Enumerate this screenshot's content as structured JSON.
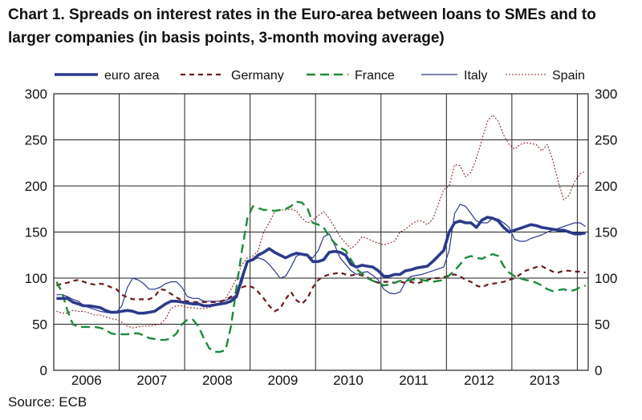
{
  "title": "Chart 1. Spreads on interest rates in the Euro-area between loans to SMEs and to larger companies (in basis points, 3-month moving average)",
  "source": "Source: ECB",
  "chart_data": {
    "type": "line",
    "title": "Chart 1. Spreads on interest rates in the Euro-area between loans to SMEs and to larger companies (in basis points, 3-month moving average)",
    "xlabel": "",
    "ylabel": "",
    "ylim": [
      0,
      300
    ],
    "y_ticks": [
      "0",
      "50",
      "100",
      "150",
      "200",
      "250",
      "300"
    ],
    "year_labels": [
      "2006",
      "2007",
      "2008",
      "2009",
      "2010",
      "2011",
      "2012",
      "2013"
    ],
    "grid": true,
    "legend_position": "top",
    "x": [
      "2006-01",
      "2006-02",
      "2006-03",
      "2006-04",
      "2006-05",
      "2006-06",
      "2006-07",
      "2006-08",
      "2006-09",
      "2006-10",
      "2006-11",
      "2006-12",
      "2007-01",
      "2007-02",
      "2007-03",
      "2007-04",
      "2007-05",
      "2007-06",
      "2007-07",
      "2007-08",
      "2007-09",
      "2007-10",
      "2007-11",
      "2007-12",
      "2008-01",
      "2008-02",
      "2008-03",
      "2008-04",
      "2008-05",
      "2008-06",
      "2008-07",
      "2008-08",
      "2008-09",
      "2008-10",
      "2008-11",
      "2008-12",
      "2009-01",
      "2009-02",
      "2009-03",
      "2009-04",
      "2009-05",
      "2009-06",
      "2009-07",
      "2009-08",
      "2009-09",
      "2009-10",
      "2009-11",
      "2009-12",
      "2010-01",
      "2010-02",
      "2010-03",
      "2010-04",
      "2010-05",
      "2010-06",
      "2010-07",
      "2010-08",
      "2010-09",
      "2010-10",
      "2010-11",
      "2010-12",
      "2011-01",
      "2011-02",
      "2011-03",
      "2011-04",
      "2011-05",
      "2011-06",
      "2011-07",
      "2011-08",
      "2011-09",
      "2011-10",
      "2011-11",
      "2011-12",
      "2012-01",
      "2012-02",
      "2012-03",
      "2012-04",
      "2012-05",
      "2012-06",
      "2012-07",
      "2012-08",
      "2012-09",
      "2012-10",
      "2012-11",
      "2012-12",
      "2013-01",
      "2013-02",
      "2013-03",
      "2013-04",
      "2013-05",
      "2013-06",
      "2013-07",
      "2013-08",
      "2013-09",
      "2013-10",
      "2013-11",
      "2013-12",
      "2014-01",
      "2014-02"
    ],
    "series": [
      {
        "name": "euro area",
        "color": "#2b3a8c",
        "style": "thick",
        "values": [
          78,
          78,
          78,
          74,
          72,
          70,
          70,
          69,
          68,
          65,
          63,
          63,
          64,
          65,
          64,
          62,
          62,
          63,
          64,
          68,
          72,
          75,
          75,
          74,
          73,
          72,
          72,
          70,
          70,
          71,
          72,
          73,
          75,
          80,
          100,
          118,
          120,
          125,
          128,
          132,
          128,
          125,
          122,
          125,
          127,
          126,
          125,
          118,
          118,
          120,
          128,
          129,
          128,
          125,
          115,
          112,
          114,
          113,
          112,
          108,
          102,
          102,
          104,
          104,
          108,
          109,
          111,
          112,
          113,
          118,
          124,
          130,
          150,
          160,
          162,
          160,
          160,
          155,
          163,
          166,
          165,
          162,
          155,
          150,
          152,
          154,
          156,
          158,
          157,
          155,
          154,
          153,
          152,
          152,
          150,
          148,
          148,
          149
        ]
      },
      {
        "name": "Germany",
        "color": "#6b1a1a",
        "style": "dashed",
        "values": [
          92,
          94,
          95,
          97,
          98,
          96,
          94,
          93,
          94,
          93,
          90,
          88,
          82,
          79,
          77,
          77,
          77,
          77,
          80,
          88,
          87,
          83,
          79,
          76,
          75,
          74,
          74,
          74,
          74,
          74,
          75,
          76,
          80,
          85,
          90,
          92,
          90,
          85,
          78,
          70,
          64,
          67,
          77,
          85,
          76,
          72,
          78,
          90,
          98,
          102,
          104,
          105,
          106,
          104,
          103,
          104,
          103,
          101,
          97,
          95,
          96,
          96,
          95,
          96,
          95,
          96,
          94,
          96,
          98,
          100,
          100,
          101,
          103,
          104,
          102,
          98,
          96,
          92,
          90,
          93,
          94,
          95,
          96,
          98,
          100,
          104,
          108,
          110,
          112,
          113,
          110,
          107,
          106,
          108,
          108,
          107,
          107,
          106
        ]
      },
      {
        "name": "France",
        "color": "#1e8a3a",
        "style": "longdash",
        "values": [
          96,
          85,
          65,
          50,
          47,
          47,
          47,
          47,
          46,
          44,
          40,
          39,
          39,
          39,
          40,
          40,
          38,
          35,
          34,
          33,
          33,
          35,
          40,
          50,
          55,
          55,
          48,
          35,
          24,
          20,
          20,
          22,
          48,
          90,
          130,
          165,
          178,
          176,
          174,
          174,
          173,
          174,
          175,
          178,
          183,
          182,
          176,
          160,
          158,
          155,
          145,
          138,
          133,
          130,
          120,
          110,
          105,
          100,
          97,
          95,
          92,
          93,
          95,
          97,
          97,
          98,
          99,
          98,
          97,
          96,
          97,
          98,
          103,
          108,
          115,
          122,
          124,
          122,
          121,
          124,
          126,
          124,
          113,
          106,
          102,
          100,
          98,
          97,
          95,
          92,
          88,
          86,
          87,
          88,
          86,
          87,
          90,
          92
        ]
      },
      {
        "name": "Italy",
        "color": "#2b3a8c",
        "style": "thin",
        "values": [
          82,
          82,
          80,
          77,
          75,
          70,
          68,
          66,
          64,
          63,
          62,
          63,
          70,
          90,
          100,
          98,
          94,
          88,
          88,
          90,
          94,
          96,
          96,
          90,
          80,
          78,
          78,
          75,
          75,
          75,
          75,
          76,
          78,
          82,
          95,
          118,
          120,
          122,
          120,
          115,
          108,
          100,
          102,
          112,
          124,
          126,
          124,
          122,
          130,
          145,
          148,
          136,
          122,
          115,
          108,
          104,
          106,
          107,
          103,
          98,
          88,
          84,
          83,
          85,
          96,
          102,
          103,
          104,
          106,
          108,
          110,
          112,
          130,
          170,
          180,
          178,
          170,
          162,
          160,
          160,
          165,
          164,
          160,
          155,
          142,
          140,
          140,
          143,
          145,
          147,
          150,
          152,
          154,
          156,
          158,
          160,
          160,
          156
        ]
      },
      {
        "name": "Spain",
        "color": "#8b2a2a",
        "style": "dotted",
        "values": [
          64,
          62,
          62,
          65,
          64,
          64,
          62,
          60,
          60,
          58,
          56,
          55,
          52,
          48,
          46,
          47,
          48,
          48,
          49,
          50,
          56,
          67,
          70,
          70,
          68,
          68,
          67,
          67,
          68,
          70,
          73,
          78,
          88,
          100,
          115,
          122,
          124,
          130,
          150,
          160,
          172,
          174,
          174,
          175,
          173,
          165,
          160,
          163,
          168,
          172,
          165,
          155,
          145,
          138,
          132,
          137,
          145,
          143,
          140,
          138,
          136,
          138,
          140,
          150,
          153,
          158,
          162,
          162,
          158,
          164,
          180,
          196,
          200,
          223,
          222,
          210,
          215,
          230,
          250,
          270,
          277,
          270,
          255,
          245,
          240,
          245,
          247,
          246,
          245,
          238,
          245,
          228,
          205,
          185,
          190,
          205,
          213,
          216
        ]
      }
    ]
  }
}
